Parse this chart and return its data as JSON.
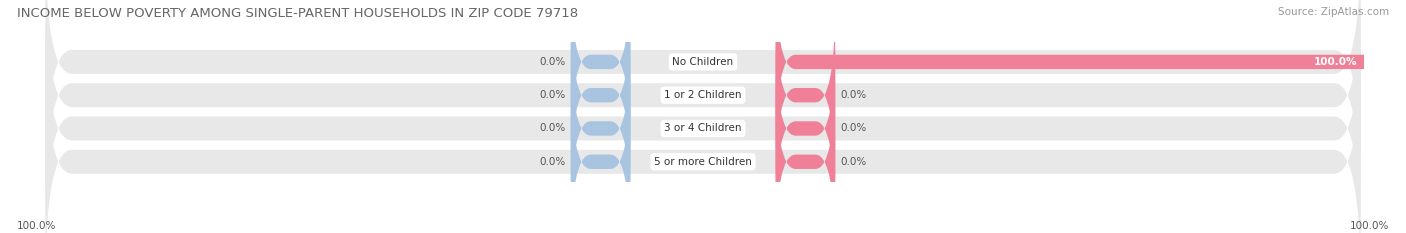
{
  "title": "INCOME BELOW POVERTY AMONG SINGLE-PARENT HOUSEHOLDS IN ZIP CODE 79718",
  "source": "Source: ZipAtlas.com",
  "categories": [
    "No Children",
    "1 or 2 Children",
    "3 or 4 Children",
    "5 or more Children"
  ],
  "single_father_values": [
    0.0,
    0.0,
    0.0,
    0.0
  ],
  "single_mother_values": [
    100.0,
    0.0,
    0.0,
    0.0
  ],
  "father_color": "#a8c4e0",
  "mother_color": "#f08098",
  "bar_bg_color": "#e8e8e8",
  "title_fontsize": 9.5,
  "source_fontsize": 7.5,
  "label_fontsize": 7.5,
  "category_fontsize": 7.5,
  "axis_label_left": "100.0%",
  "axis_label_right": "100.0%",
  "max_value": 100.0
}
